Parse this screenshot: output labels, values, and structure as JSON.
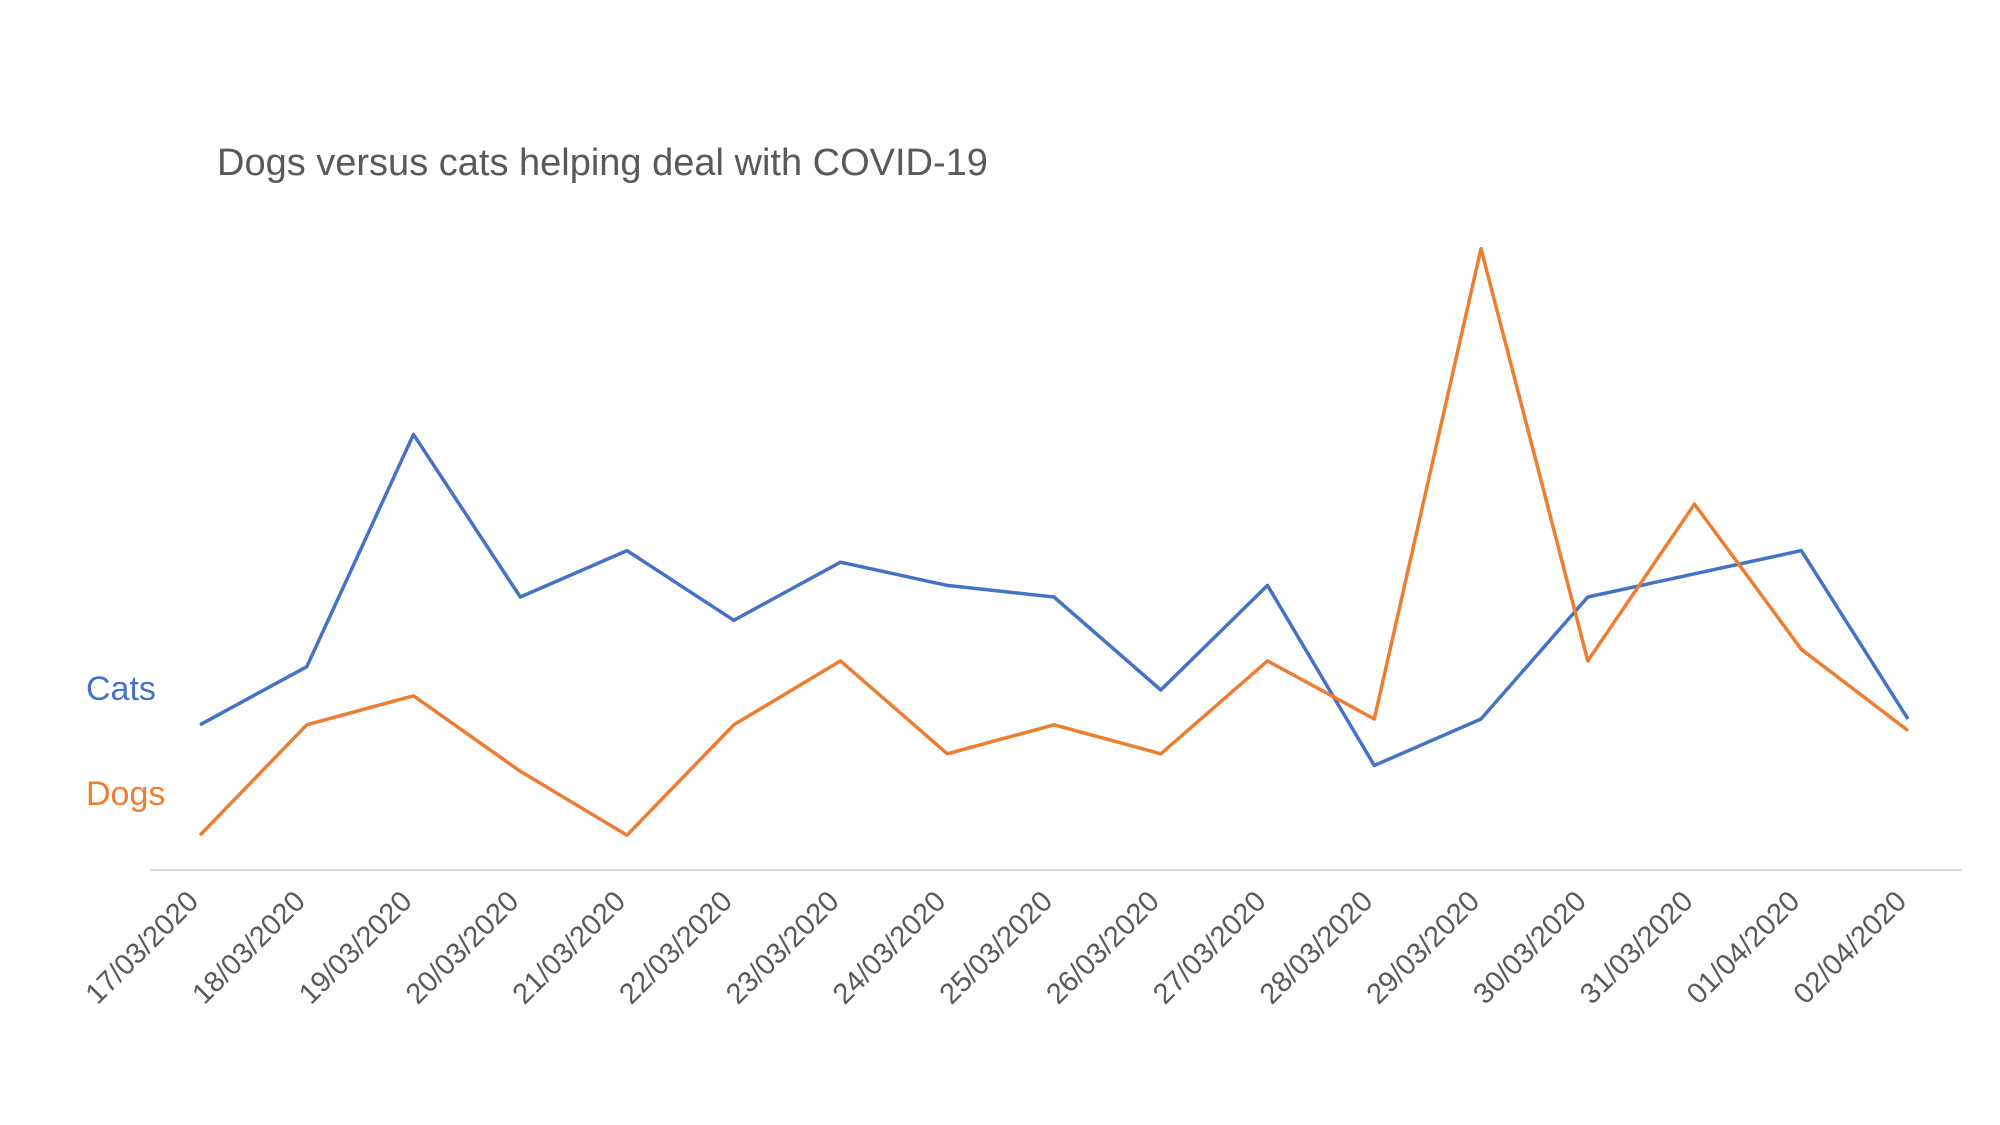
{
  "chart_data": {
    "type": "line",
    "title": "Dogs versus cats helping deal with COVID-19",
    "xlabel": "",
    "ylabel": "",
    "ylim": [
      0,
      26
    ],
    "grid": false,
    "legend": "inline-left",
    "categories": [
      "17/03/2020",
      "18/03/2020",
      "19/03/2020",
      "20/03/2020",
      "21/03/2020",
      "22/03/2020",
      "23/03/2020",
      "24/03/2020",
      "25/03/2020",
      "26/03/2020",
      "27/03/2020",
      "28/03/2020",
      "29/03/2020",
      "30/03/2020",
      "31/03/2020",
      "01/04/2020",
      "02/04/2020"
    ],
    "series": [
      {
        "name": "Cats",
        "color": "#4472C4",
        "values": [
          5,
          7,
          15,
          9.4,
          11,
          8.6,
          10.6,
          9.8,
          9.4,
          6.2,
          9.8,
          3.6,
          5.2,
          9.4,
          10.2,
          11,
          5.2
        ]
      },
      {
        "name": "Dogs",
        "color": "#ED7D31",
        "values": [
          1.2,
          5,
          6,
          3.4,
          1.2,
          5,
          7.2,
          4,
          5,
          4,
          7.2,
          5.2,
          21.4,
          7.2,
          12.6,
          7.6,
          4.8
        ]
      }
    ]
  }
}
